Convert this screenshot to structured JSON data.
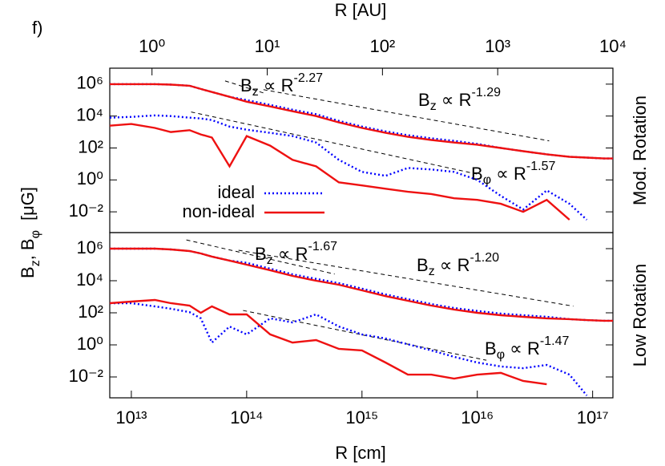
{
  "chart_data": [
    {
      "type": "line",
      "panel_label": "f)",
      "side_label": "Mod. Rotation",
      "ylabel": {
        "var1": "B",
        "sub1": "z",
        "var2": ", B",
        "sub2": "φ",
        "unit": "[μG]"
      },
      "x2label": "R    [AU]",
      "x2lim": [
        0.43,
        10000
      ],
      "x2ticks": [
        {
          "value": 1,
          "label": "10⁰"
        },
        {
          "value": 10,
          "label": "10¹"
        },
        {
          "value": 100,
          "label": "10²"
        },
        {
          "value": 1000,
          "label": "10³"
        },
        {
          "value": 10000,
          "label": "10⁴"
        }
      ],
      "xlim": [
        6500000000000.0,
        1.5e+17
      ],
      "log_x": true,
      "log_y": true,
      "ylim": [
        0.0005,
        10000000.0
      ],
      "yticks": [
        {
          "value": 0.01,
          "label": "10⁻²"
        },
        {
          "value": 1,
          "label": "10⁰"
        },
        {
          "value": 100,
          "label": "10²"
        },
        {
          "value": 10000,
          "label": "10⁴"
        },
        {
          "value": 1000000,
          "label": "10⁶"
        }
      ],
      "legend": true,
      "x": [
        6500000000000.0,
        10000000000000.0,
        16000000000000.0,
        22000000000000.0,
        32000000000000.0,
        40000000000000.0,
        50000000000000.0,
        71000000000000.0,
        100000000000000.0,
        160000000000000.0,
        250000000000000.0,
        400000000000000.0,
        630000000000000.0,
        1000000000000000.0,
        1600000000000000.0,
        2500000000000000.0,
        4000000000000000.0,
        6300000000000000.0,
        1e+16,
        1.6e+16,
        2.5e+16,
        4e+16,
        6.3e+16,
        8.9e+16,
        1.26e+17,
        1.5e+17
      ],
      "series": [
        {
          "name": "ideal",
          "color": "#0000ff",
          "dash": "dotted",
          "values": [
            1000000.0,
            1000000.0,
            1000000.0,
            930000.0,
            790000.0,
            500000.0,
            320000.0,
            160000.0,
            100000.0,
            50000.0,
            25000.0,
            13000.0,
            5000.0,
            2200.0,
            1100.0,
            630,
            400,
            280,
            180,
            100,
            63,
            40,
            28,
            25,
            22,
            22
          ],
          "phi_values": [
            7900,
            8900,
            11000,
            10000,
            7900,
            7100,
            5600,
            2200,
            1400,
            890,
            560,
            220,
            18,
            3.2,
            1.8,
            5.6,
            4.5,
            3.2,
            1,
            0.1,
            0.014,
            0.22,
            0.032,
            0.0032,
            null,
            null
          ]
        },
        {
          "name": "non-ideal",
          "color": "#ee1111",
          "dash": "solid",
          "values": [
            1000000.0,
            1000000.0,
            1000000.0,
            930000.0,
            790000.0,
            500000.0,
            320000.0,
            160000.0,
            79000.0,
            40000.0,
            20000.0,
            10000.0,
            4000.0,
            1800.0,
            890,
            500,
            320,
            220,
            160,
            100,
            63,
            40,
            28,
            25,
            22,
            22
          ],
          "phi_values": [
            2500,
            3200,
            1800,
            1000,
            1300,
            710,
            450,
            7.1,
            560,
            140,
            18,
            7.1,
            0.71,
            0.45,
            0.28,
            0.18,
            0.13,
            0.071,
            0.056,
            0.032,
            0.01,
            0.056,
            0.0032,
            null,
            null,
            null
          ]
        }
      ],
      "annotations": [
        {
          "var": "B",
          "sub": "z",
          "rel": " ∝ R",
          "exp": "-2.27",
          "fit": {
            "x": [
              65000000000000.0,
              140000000000000.0
            ],
            "y": [
              1600000.0,
              280000.0
            ]
          }
        },
        {
          "var": "B",
          "sub": "z",
          "rel": " ∝ R",
          "exp": "-1.29",
          "fit": {
            "x": [
              140000000000000.0,
              4.2e+16
            ],
            "y": [
              450000.0,
              280
            ]
          }
        },
        {
          "var": "B",
          "sub": "φ",
          "rel": " ∝ R",
          "exp": "-1.57",
          "fit": {
            "x": [
              33000000000000.0,
              1e+16
            ],
            "y": [
              18000,
              2.3
            ]
          }
        }
      ]
    },
    {
      "type": "line",
      "side_label": "Low Rotation",
      "xlabel": "R   [cm]",
      "xlim": [
        6500000000000.0,
        1.5e+17
      ],
      "log_x": true,
      "log_y": true,
      "xticks": [
        {
          "value": 10000000000000.0,
          "label": "10¹³"
        },
        {
          "value": 100000000000000.0,
          "label": "10¹⁴"
        },
        {
          "value": 1000000000000000.0,
          "label": "10¹⁵"
        },
        {
          "value": 1e+16,
          "label": "10¹⁶"
        },
        {
          "value": 1e+17,
          "label": "10¹⁷"
        }
      ],
      "ylim": [
        0.0005,
        10000000.0
      ],
      "yticks": [
        {
          "value": 0.01,
          "label": "10⁻²"
        },
        {
          "value": 1,
          "label": "10⁰"
        },
        {
          "value": 100,
          "label": "10²"
        },
        {
          "value": 10000,
          "label": "10⁴"
        },
        {
          "value": 1000000,
          "label": "10⁶"
        }
      ],
      "legend": false,
      "x": [
        6500000000000.0,
        10000000000000.0,
        16000000000000.0,
        22000000000000.0,
        32000000000000.0,
        40000000000000.0,
        50000000000000.0,
        71000000000000.0,
        100000000000000.0,
        160000000000000.0,
        250000000000000.0,
        400000000000000.0,
        630000000000000.0,
        1000000000000000.0,
        1600000000000000.0,
        2500000000000000.0,
        4000000000000000.0,
        6300000000000000.0,
        1e+16,
        1.6e+16,
        2.5e+16,
        4e+16,
        6.3e+16,
        8.9e+16,
        1.26e+17,
        1.5e+17
      ],
      "series": [
        {
          "color": "#0000ff",
          "dash": "dotted",
          "values": [
            1000000.0,
            1000000.0,
            1000000.0,
            890000.0,
            710000.0,
            500000.0,
            320000.0,
            180000.0,
            130000.0,
            56000.0,
            25000.0,
            13000.0,
            7100.0,
            3200.0,
            1400.0,
            710,
            350,
            200,
            130,
            89,
            71,
            56,
            40,
            35,
            32,
            32
          ],
          "phi_values": [
            400,
            400,
            250,
            180,
            110,
            45,
            1.4,
            14,
            4.5,
            45,
            25,
            79,
            14,
            4.5,
            2.5,
            1.1,
            0.45,
            0.18,
            0.079,
            0.045,
            0.035,
            0.056,
            0.014,
            0.0007,
            null,
            null
          ]
        },
        {
          "color": "#ee1111",
          "dash": "solid",
          "values": [
            1000000.0,
            1000000.0,
            1000000.0,
            890000.0,
            710000.0,
            500000.0,
            320000.0,
            180000.0,
            100000.0,
            45000.0,
            20000.0,
            10000.0,
            5600.0,
            2500.0,
            1100.0,
            560,
            280,
            160,
            100,
            71,
            56,
            45,
            40,
            35,
            32,
            32
          ],
          "phi_values": [
            400,
            500,
            630,
            400,
            280,
            100,
            250,
            79,
            79,
            4.5,
            1.4,
            2,
            0.56,
            0.45,
            0.079,
            0.014,
            0.014,
            0.0079,
            0.014,
            0.018,
            0.0056,
            0.0035,
            null,
            null,
            null,
            null
          ]
        }
      ],
      "annotations": [
        {
          "var": "B",
          "sub": "z",
          "rel": " ∝ R",
          "exp": "-1.67",
          "fit": {
            "x": [
              30000000000000.0,
              580000000000000.0
            ],
            "y": [
              3500000.0,
              26000
            ]
          }
        },
        {
          "var": "B",
          "sub": "z",
          "rel": " ∝ R",
          "exp": "-1.20",
          "fit": {
            "x": [
              85000000000000.0,
              6.8e+16
            ],
            "y": [
              790000.0,
              260
            ]
          }
        },
        {
          "var": "B",
          "sub": "φ",
          "rel": " ∝ R",
          "exp": "-1.47",
          "fit": {
            "x": [
              93000000000000.0,
              1.2e+16
            ],
            "y": [
              140,
              0.11
            ]
          }
        }
      ]
    }
  ]
}
